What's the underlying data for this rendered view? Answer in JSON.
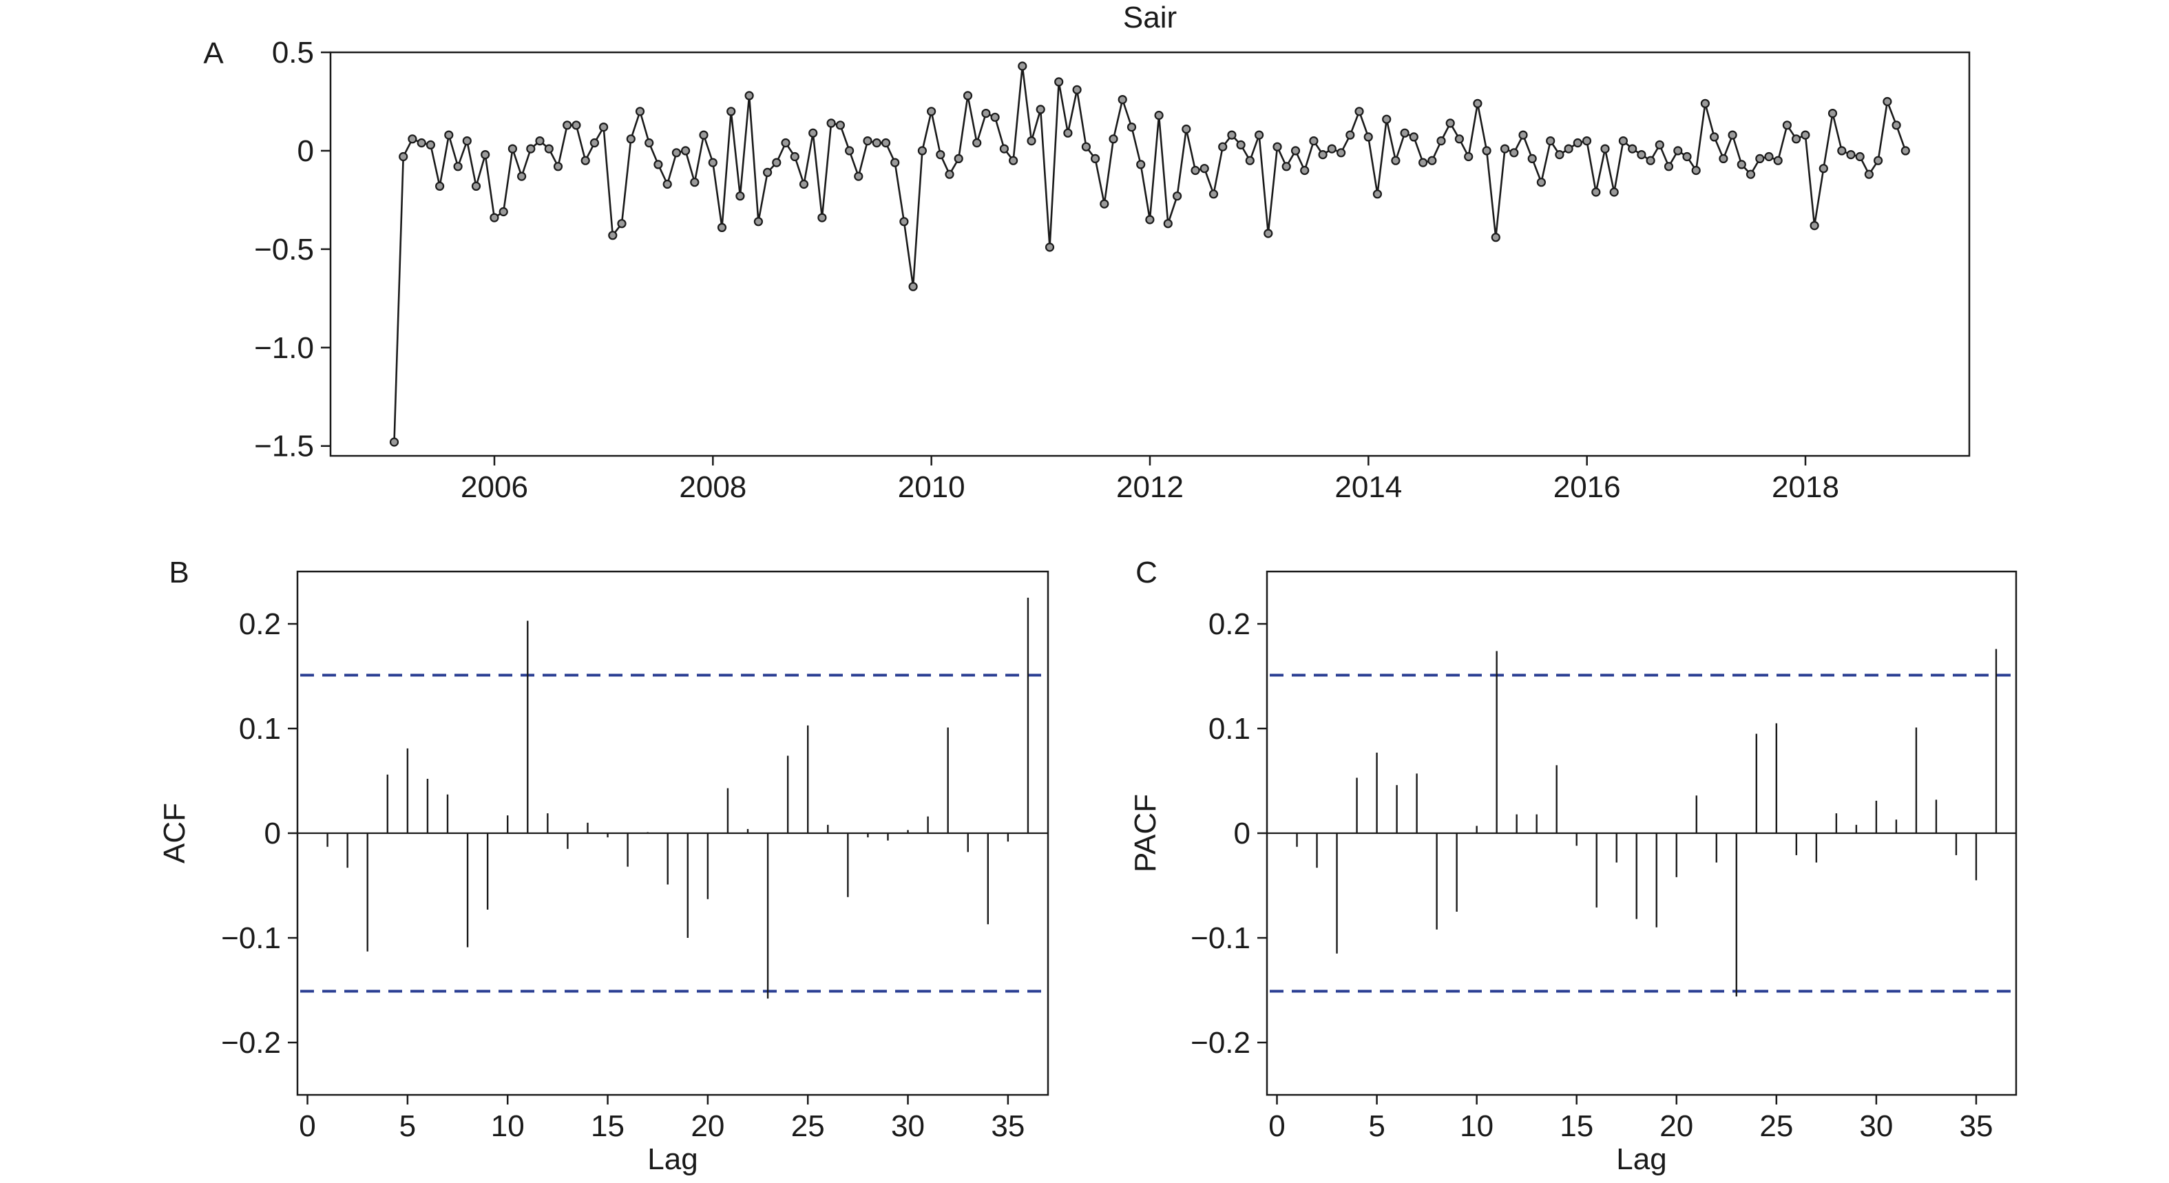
{
  "colors": {
    "line": "#1a1a1a",
    "marker_fill": "#9a9a9a",
    "ci": "#2b3f93",
    "axis": "#1a1a1a"
  },
  "chart_data": [
    {
      "panel_label": "A",
      "type": "line",
      "title": "Sair",
      "xlabel": "",
      "ylabel": "",
      "xlim": [
        2004.5,
        2019.5
      ],
      "ylim": [
        -1.55,
        0.5
      ],
      "xticks": [
        2006,
        2008,
        2010,
        2012,
        2014,
        2016,
        2018
      ],
      "xtick_labels": [
        "2006",
        "2008",
        "2010",
        "2012",
        "2014",
        "2016",
        "2018"
      ],
      "yticks": [
        0.5,
        0,
        -0.5,
        -1.0,
        -1.5
      ],
      "ytick_labels": [
        "0.5",
        "0",
        "−0.5",
        "−1.0",
        "−1.5"
      ],
      "grid": false,
      "legend": "none",
      "x_start": 2005.083,
      "x_step": 0.08333,
      "series": [
        {
          "marker": "circle",
          "values": [
            -1.48,
            -0.03,
            0.06,
            0.04,
            0.03,
            -0.18,
            0.08,
            -0.08,
            0.05,
            -0.18,
            -0.02,
            -0.34,
            -0.31,
            0.01,
            -0.13,
            0.01,
            0.05,
            0.01,
            -0.08,
            0.13,
            0.13,
            -0.05,
            0.04,
            0.12,
            -0.43,
            -0.37,
            0.06,
            0.2,
            0.04,
            -0.07,
            -0.17,
            -0.01,
            0.0,
            -0.16,
            0.08,
            -0.06,
            -0.39,
            0.2,
            -0.23,
            0.28,
            -0.36,
            -0.11,
            -0.06,
            0.04,
            -0.03,
            -0.17,
            0.09,
            -0.34,
            0.14,
            0.13,
            0.0,
            -0.13,
            0.05,
            0.04,
            0.04,
            -0.06,
            -0.36,
            -0.69,
            0.0,
            0.2,
            -0.02,
            -0.12,
            -0.04,
            0.28,
            0.04,
            0.19,
            0.17,
            0.01,
            -0.05,
            0.43,
            0.05,
            0.21,
            -0.49,
            0.35,
            0.09,
            0.31,
            0.02,
            -0.04,
            -0.27,
            0.06,
            0.26,
            0.12,
            -0.07,
            -0.35,
            0.18,
            -0.37,
            -0.23,
            0.11,
            -0.1,
            -0.09,
            -0.22,
            0.02,
            0.08,
            0.03,
            -0.05,
            0.08,
            -0.42,
            0.02,
            -0.08,
            0.0,
            -0.1,
            0.05,
            -0.02,
            0.01,
            -0.01,
            0.08,
            0.2,
            0.07,
            -0.22,
            0.16,
            -0.05,
            0.09,
            0.07,
            -0.06,
            -0.05,
            0.05,
            0.14,
            0.06,
            -0.03,
            0.24,
            0.0,
            -0.44,
            0.01,
            -0.01,
            0.08,
            -0.04,
            -0.16,
            0.05,
            -0.02,
            0.01,
            0.04,
            0.05,
            -0.21,
            0.01,
            -0.21,
            0.05,
            0.01,
            -0.02,
            -0.05,
            0.03,
            -0.08,
            0.0,
            -0.03,
            -0.1,
            0.24,
            0.07,
            -0.04,
            0.08,
            -0.07,
            -0.12,
            -0.04,
            -0.03,
            -0.05,
            0.13,
            0.06,
            0.08,
            -0.38,
            -0.09,
            0.19,
            0.0,
            -0.02,
            -0.03,
            -0.12,
            -0.05,
            0.25,
            0.13,
            0.0
          ]
        }
      ]
    },
    {
      "panel_label": "B",
      "type": "bar",
      "title": "",
      "xlabel": "Lag",
      "ylabel": "ACF",
      "xlim": [
        -0.5,
        37
      ],
      "ylim": [
        -0.25,
        0.25
      ],
      "xticks": [
        0,
        5,
        10,
        15,
        20,
        25,
        30,
        35
      ],
      "xtick_labels": [
        "0",
        "5",
        "10",
        "15",
        "20",
        "25",
        "30",
        "35"
      ],
      "yticks": [
        0.2,
        0.1,
        0,
        -0.1,
        -0.2
      ],
      "ytick_labels": [
        "0.2",
        "0.1",
        "0",
        "−0.1",
        "−0.2"
      ],
      "ci": [
        0.151,
        -0.151
      ],
      "grid": false,
      "legend": "none",
      "categories": [
        1,
        2,
        3,
        4,
        5,
        6,
        7,
        8,
        9,
        10,
        11,
        12,
        13,
        14,
        15,
        16,
        17,
        18,
        19,
        20,
        21,
        22,
        23,
        24,
        25,
        26,
        27,
        28,
        29,
        30,
        31,
        32,
        33,
        34,
        35,
        36
      ],
      "values": [
        -0.013,
        -0.033,
        -0.113,
        0.056,
        0.081,
        0.052,
        0.037,
        -0.109,
        -0.073,
        0.017,
        0.203,
        0.019,
        -0.015,
        0.01,
        -0.004,
        -0.032,
        0.001,
        -0.049,
        -0.1,
        -0.063,
        0.043,
        0.004,
        -0.158,
        0.074,
        0.103,
        0.008,
        -0.061,
        -0.004,
        -0.007,
        0.003,
        0.016,
        0.101,
        -0.018,
        -0.087,
        -0.008,
        0.225
      ]
    },
    {
      "panel_label": "C",
      "type": "bar",
      "title": "",
      "xlabel": "Lag",
      "ylabel": "PACF",
      "xlim": [
        -0.5,
        37
      ],
      "ylim": [
        -0.25,
        0.25
      ],
      "xticks": [
        0,
        5,
        10,
        15,
        20,
        25,
        30,
        35
      ],
      "xtick_labels": [
        "0",
        "5",
        "10",
        "15",
        "20",
        "25",
        "30",
        "35"
      ],
      "yticks": [
        0.2,
        0.1,
        0,
        -0.1,
        -0.2
      ],
      "ytick_labels": [
        "0.2",
        "0.1",
        "0",
        "−0.1",
        "−0.2"
      ],
      "ci": [
        0.151,
        -0.151
      ],
      "grid": false,
      "legend": "none",
      "categories": [
        1,
        2,
        3,
        4,
        5,
        6,
        7,
        8,
        9,
        10,
        11,
        12,
        13,
        14,
        15,
        16,
        17,
        18,
        19,
        20,
        21,
        22,
        23,
        24,
        25,
        26,
        27,
        28,
        29,
        30,
        31,
        32,
        33,
        34,
        35,
        36
      ],
      "values": [
        -0.013,
        -0.033,
        -0.115,
        0.053,
        0.077,
        0.046,
        0.057,
        -0.092,
        -0.075,
        0.007,
        0.174,
        0.018,
        0.018,
        0.065,
        -0.012,
        -0.071,
        -0.028,
        -0.082,
        -0.09,
        -0.042,
        0.036,
        -0.028,
        -0.156,
        0.095,
        0.105,
        -0.021,
        -0.028,
        0.019,
        0.008,
        0.031,
        0.013,
        0.101,
        0.032,
        -0.021,
        -0.045,
        0.176
      ]
    }
  ]
}
